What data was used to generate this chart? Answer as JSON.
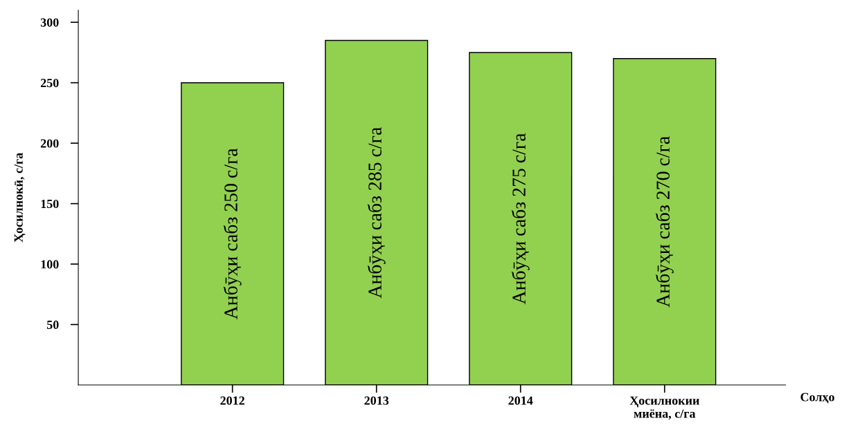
{
  "chart_data": {
    "type": "bar",
    "categories": [
      "2012",
      "2013",
      "2014",
      "Ҳосилнокии\nмиёна, с/га"
    ],
    "values": [
      250,
      285,
      275,
      270
    ],
    "value_labels": [
      "Анбӯҳи сабз 250 с/га",
      "Анбӯҳи сабз 285 с/га",
      "Анбӯҳи сабз 275 с/га",
      "Анбӯҳи сабз 270 с/га"
    ],
    "color": "#92d050",
    "xlabel": "Солҳо",
    "ylabel": "Ҳосилнокӣ, с/га",
    "ylim": [
      0,
      310
    ],
    "yticks": [
      50,
      100,
      150,
      200,
      250,
      300
    ],
    "grid": false,
    "legend": false
  }
}
